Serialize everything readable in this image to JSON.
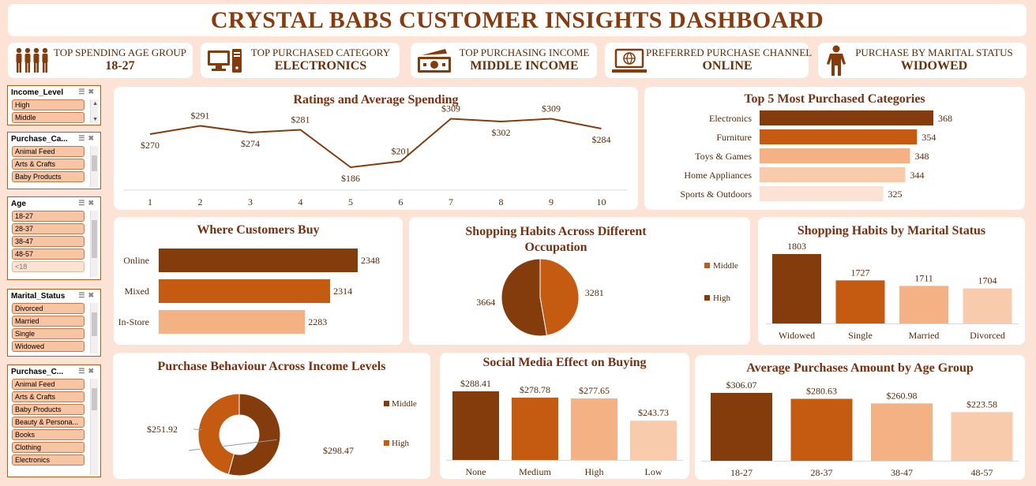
{
  "title": "CRYSTAL BABS CUSTOMER INSIGHTS DASHBOARD",
  "kpis": [
    {
      "label": "TOP SPENDING AGE GROUP",
      "value": "18-27",
      "icon": "people-icon"
    },
    {
      "label": "TOP PURCHASED CATEGORY",
      "value": "ELECTRONICS",
      "icon": "computer-icon"
    },
    {
      "label": "TOP PURCHASING INCOME",
      "value": "MIDDLE INCOME",
      "icon": "money-icon"
    },
    {
      "label": "PREFERRED PURCHASE CHANNEL",
      "value": "ONLINE",
      "icon": "laptop-globe-icon"
    },
    {
      "label": "PURCHASE BY MARITAL STATUS",
      "value": "WIDOWED",
      "icon": "person-icon"
    }
  ],
  "slicers": [
    {
      "title": "Income_Level",
      "items": [
        "High",
        "Middle"
      ],
      "dim": []
    },
    {
      "title": "Purchase_Ca...",
      "items": [
        "Animal Feed",
        "Arts & Crafts",
        "Baby Products"
      ],
      "dim": []
    },
    {
      "title": "Age",
      "items": [
        "18-27",
        "28-37",
        "38-47",
        "48-57",
        "<18"
      ],
      "dim": [
        4
      ]
    },
    {
      "title": "Marital_Status",
      "items": [
        "Divorced",
        "Married",
        "Single",
        "Widowed"
      ],
      "dim": []
    },
    {
      "title": "Purchase_C...",
      "items": [
        "Animal Feed",
        "Arts & Crafts",
        "Baby Products",
        "Beauty & Persona...",
        "Books",
        "Clothing",
        "Electronics"
      ],
      "dim": []
    }
  ],
  "colors": {
    "dark": "#843c0c",
    "mid": "#c55a11",
    "light": "#f4b183",
    "pale": "#f8cbad",
    "palest": "#fbe2d5"
  },
  "chart_data": [
    {
      "type": "line",
      "title": "Ratings and Average Spending",
      "x": [
        1,
        2,
        3,
        4,
        5,
        6,
        7,
        8,
        9,
        10
      ],
      "values": [
        270,
        291,
        274,
        281,
        186,
        201,
        309,
        302,
        309,
        284
      ],
      "labels": [
        "$270",
        "$291",
        "$274",
        "$281",
        "$186",
        "$201",
        "$309",
        "$302",
        "$309",
        "$284"
      ]
    },
    {
      "type": "bar",
      "orientation": "horizontal",
      "title": "Top 5 Most Purchased Categories",
      "categories": [
        "Electronics",
        "Furniture",
        "Toys & Games",
        "Home Appliances",
        "Sports & Outdoors"
      ],
      "values": [
        368,
        354,
        348,
        344,
        325
      ]
    },
    {
      "type": "bar",
      "orientation": "horizontal",
      "title": "Where Customers Buy",
      "categories": [
        "Online",
        "Mixed",
        "In-Store"
      ],
      "values": [
        2348,
        2314,
        2283
      ]
    },
    {
      "type": "pie",
      "title": "Shopping Habits Across Different Occupation",
      "categories": [
        "Middle",
        "High"
      ],
      "values": [
        3281,
        3664
      ],
      "legend": "right"
    },
    {
      "type": "bar",
      "title": "Shopping Habits by Marital Status",
      "categories": [
        "Widowed",
        "Single",
        "Married",
        "Divorced"
      ],
      "values": [
        1803,
        1727,
        1711,
        1704
      ]
    },
    {
      "type": "pie",
      "subtype": "donut",
      "title": "Purchase Behaviour Across Income Levels",
      "categories": [
        "Middle",
        "High"
      ],
      "values": [
        298.47,
        251.92
      ],
      "labels": [
        "$298.47",
        "$251.92"
      ],
      "legend": "right"
    },
    {
      "type": "bar",
      "title": "Social Media Effect on Buying",
      "categories": [
        "None",
        "Medium",
        "High",
        "Low"
      ],
      "values": [
        288.41,
        278.78,
        277.65,
        243.73
      ],
      "labels": [
        "$288.41",
        "$278.78",
        "$277.65",
        "$243.73"
      ]
    },
    {
      "type": "bar",
      "title": "Average Purchases Amount by Age Group",
      "categories": [
        "18-27",
        "28-37",
        "38-47",
        "48-57"
      ],
      "values": [
        306.07,
        280.63,
        260.98,
        223.58
      ],
      "labels": [
        "$306.07",
        "$280.63",
        "$260.98",
        "$223.58"
      ]
    }
  ]
}
